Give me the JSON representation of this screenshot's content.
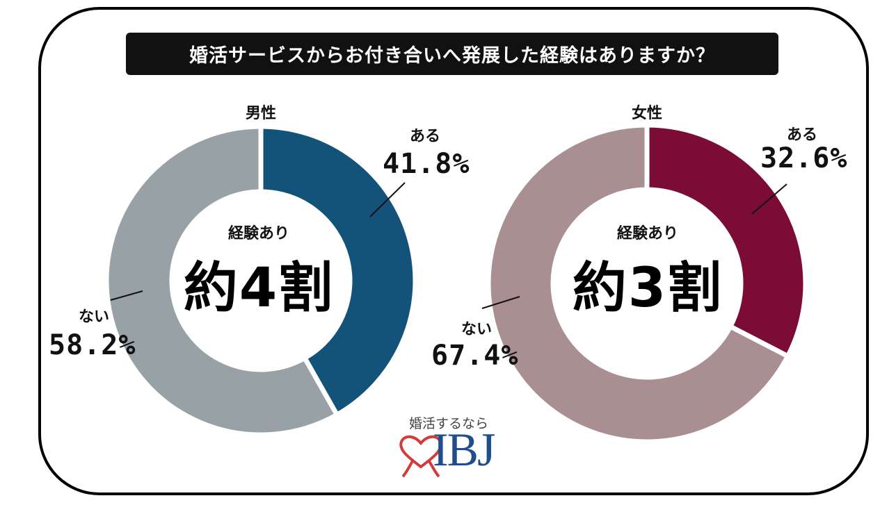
{
  "title": "婚活サービスからお付き合いへ発展した経験はありますか？",
  "chart_data": [
    {
      "type": "pie",
      "title": "男性",
      "categories": [
        "ある",
        "ない"
      ],
      "values": [
        41.8,
        58.2
      ],
      "value_labels": [
        "41.8%",
        "58.2%"
      ],
      "colors": [
        "#13537a",
        "#98a2a6"
      ],
      "center_caption": "経験あり",
      "center_value": "約4割"
    },
    {
      "type": "pie",
      "title": "女性",
      "categories": [
        "ある",
        "ない"
      ],
      "values": [
        32.6,
        67.4
      ],
      "value_labels": [
        "32.6%",
        "67.4%"
      ],
      "colors": [
        "#7a0c35",
        "#a98e92"
      ],
      "center_caption": "経験あり",
      "center_value": "約3割"
    }
  ],
  "logo": {
    "tagline": "婚活するなら",
    "name": "IBJ",
    "heart_color": "#d33b3b",
    "text_color": "#1f4e8c"
  }
}
